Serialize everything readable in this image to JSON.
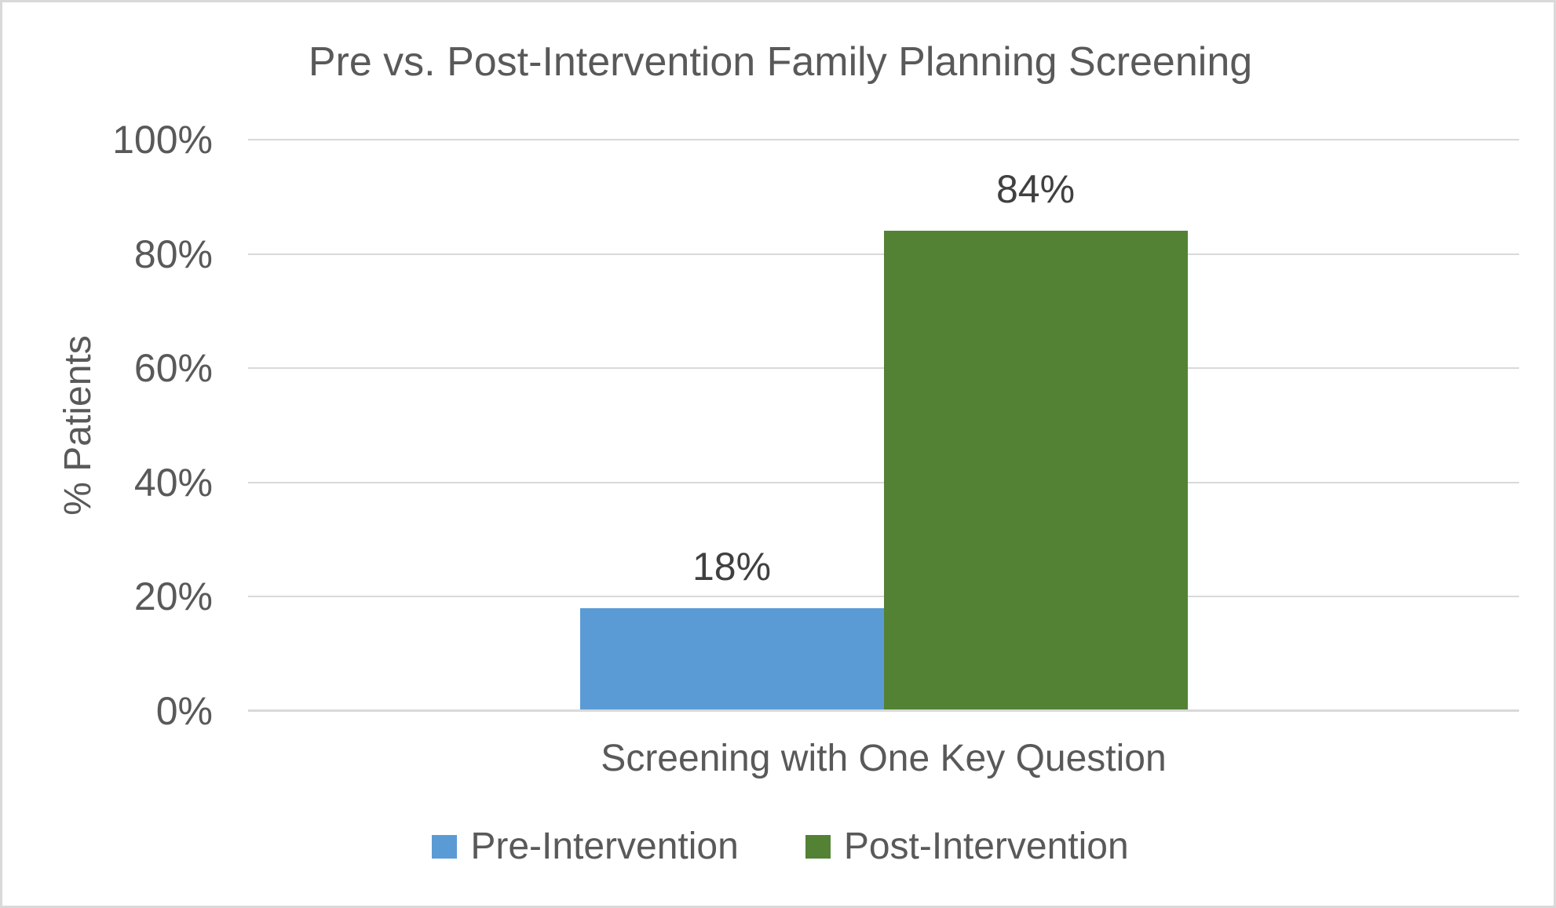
{
  "chart_data": {
    "type": "bar",
    "title": "Pre vs. Post-Intervention Family Planning Screening",
    "categories": [
      "Screening with One Key Question"
    ],
    "series": [
      {
        "name": "Pre-Intervention",
        "values": [
          18
        ],
        "data_labels": [
          "18%"
        ],
        "color": "#5B9BD5"
      },
      {
        "name": "Post-Intervention",
        "values": [
          84
        ],
        "data_labels": [
          "84%"
        ],
        "color": "#548235"
      }
    ],
    "xlabel": "",
    "ylabel": "% Patients",
    "ylim": [
      0,
      100
    ],
    "yticks": [
      0,
      20,
      40,
      60,
      80,
      100
    ],
    "ytick_labels": [
      "0%",
      "20%",
      "40%",
      "60%",
      "80%",
      "100%"
    ],
    "grid": true,
    "legend_position": "bottom",
    "colors": {
      "grid": "#D9D9D9",
      "text": "#595959",
      "background": "#FFFFFF",
      "border": "#D9D9D9"
    }
  }
}
